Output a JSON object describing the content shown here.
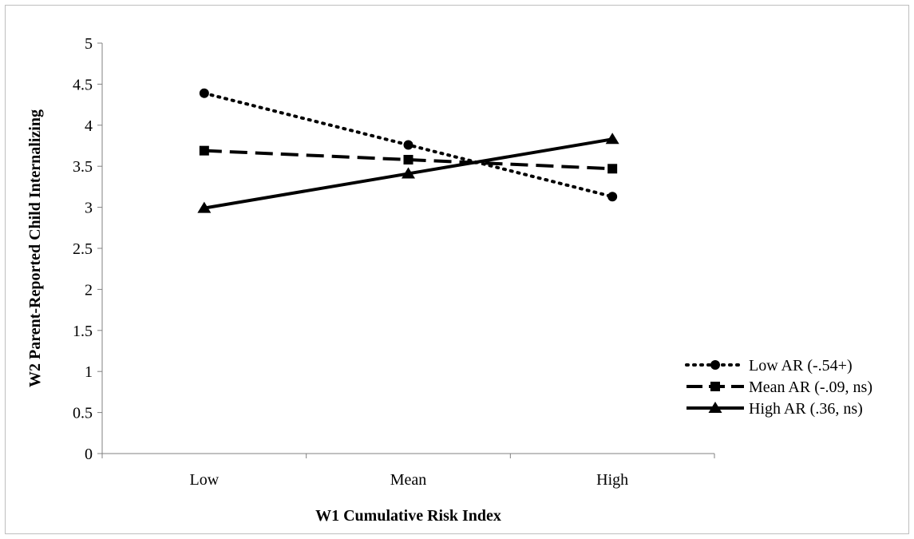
{
  "chart_data": {
    "type": "line",
    "title": "",
    "xlabel": "W1 Cumulative Risk Index",
    "ylabel": "W2 Parent-Reported Child Internalizing",
    "categories": [
      "Low",
      "Mean",
      "High"
    ],
    "ylim": [
      0,
      5
    ],
    "yticks": [
      0,
      0.5,
      1,
      1.5,
      2,
      2.5,
      3,
      3.5,
      4,
      4.5,
      5
    ],
    "ytick_labels": [
      "0",
      "0.5",
      "1",
      "1.5",
      "2",
      "2.5",
      "3",
      "3.5",
      "4",
      "4.5",
      "5"
    ],
    "grid": false,
    "legend_position": "right",
    "series": [
      {
        "name": "Low AR (-.54+)",
        "values": [
          4.39,
          3.76,
          3.13
        ],
        "line_style": "dotted",
        "marker": "circle",
        "color": "#000000"
      },
      {
        "name": "Mean AR (-.09, ns)",
        "values": [
          3.69,
          3.58,
          3.47
        ],
        "line_style": "dashed",
        "marker": "square",
        "color": "#000000"
      },
      {
        "name": "High AR (.36, ns)",
        "values": [
          2.99,
          3.41,
          3.83
        ],
        "line_style": "solid",
        "marker": "triangle",
        "color": "#000000"
      }
    ]
  }
}
